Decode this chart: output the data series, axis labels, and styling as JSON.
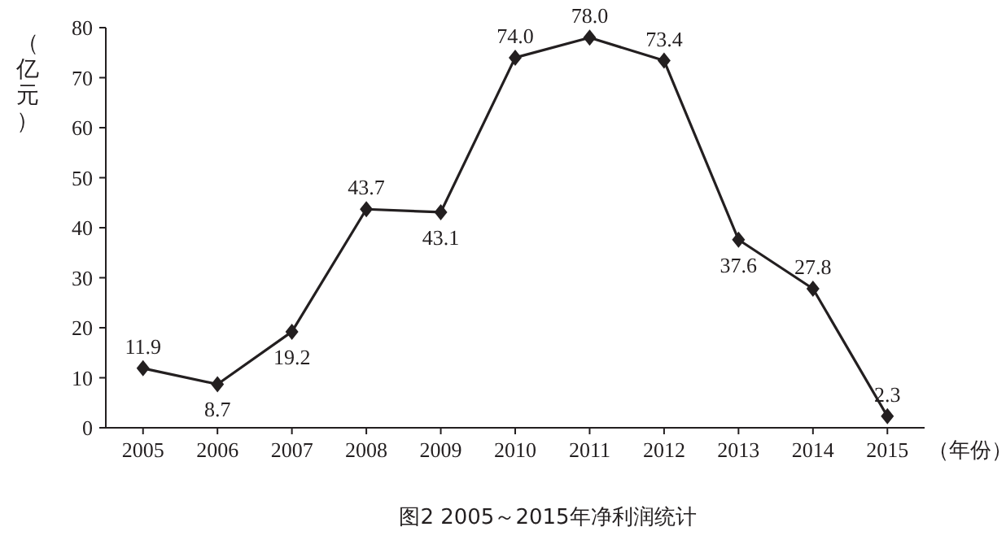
{
  "chart_data": {
    "type": "line",
    "title": "图2 2005～2015年净利润统计",
    "xlabel": "（年份）",
    "ylabel": "（亿元）",
    "categories": [
      "2005",
      "2006",
      "2007",
      "2008",
      "2009",
      "2010",
      "2011",
      "2012",
      "2013",
      "2014",
      "2015"
    ],
    "values": [
      11.9,
      8.7,
      19.2,
      43.7,
      43.1,
      74.0,
      78.0,
      73.4,
      37.6,
      27.8,
      2.3
    ],
    "value_labels": [
      "11.9",
      "8.7",
      "19.2",
      "43.7",
      "43.1",
      "74.0",
      "78.0",
      "73.4",
      "37.6",
      "27.8",
      "2.3"
    ],
    "color": "#231f20",
    "marker": "diamond",
    "line_style": "solid",
    "grid": false,
    "ylim": [
      0,
      80
    ],
    "yticks": [
      0,
      10,
      20,
      30,
      40,
      50,
      60,
      70,
      80
    ]
  }
}
